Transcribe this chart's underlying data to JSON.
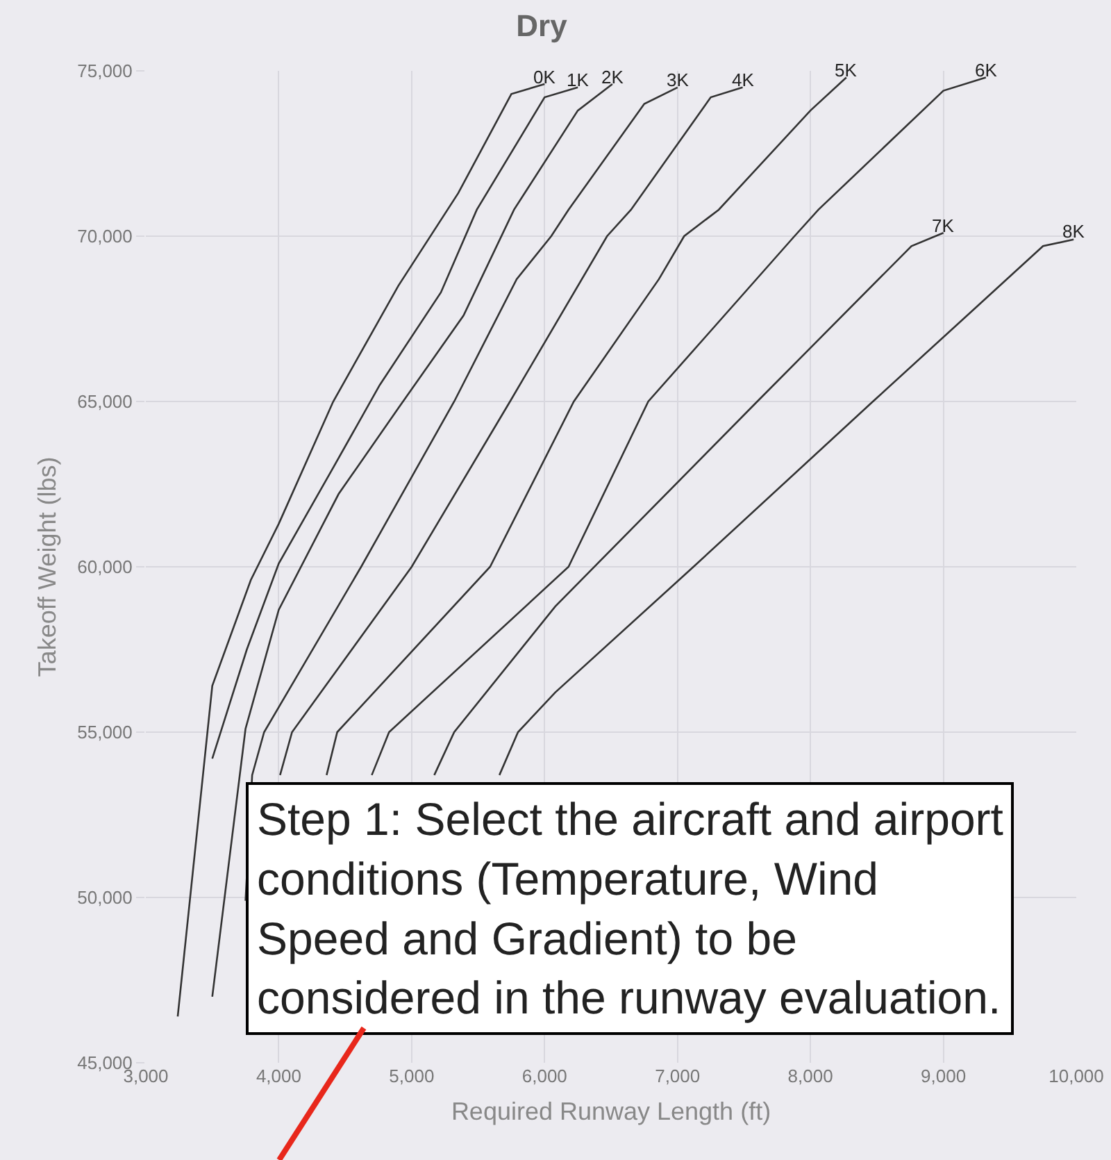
{
  "chart_data": {
    "type": "line",
    "title": "Dry",
    "xlabel": "Required Runway Length (ft)",
    "ylabel": "Takeoff Weight (lbs)",
    "xlim": [
      3000,
      10000
    ],
    "ylim": [
      45000,
      75000
    ],
    "xticks": [
      {
        "value": 3000,
        "label": "3,000"
      },
      {
        "value": 4000,
        "label": "4,000"
      },
      {
        "value": 5000,
        "label": "5,000"
      },
      {
        "value": 6000,
        "label": "6,000"
      },
      {
        "value": 7000,
        "label": "7,000"
      },
      {
        "value": 8000,
        "label": "8,000"
      },
      {
        "value": 9000,
        "label": "9,000"
      },
      {
        "value": 10000,
        "label": "10,000"
      }
    ],
    "yticks": [
      {
        "value": 45000,
        "label": "45,000"
      },
      {
        "value": 50000,
        "label": "50,000"
      },
      {
        "value": 55000,
        "label": "55,000"
      },
      {
        "value": 60000,
        "label": "60,000"
      },
      {
        "value": 65000,
        "label": "65,000"
      },
      {
        "value": 70000,
        "label": "70,000"
      },
      {
        "value": 75000,
        "label": "75,000"
      }
    ],
    "grid": true,
    "legend": false,
    "marker": "none",
    "line_style": "solid",
    "series": [
      {
        "name": "0K",
        "color": "#333333",
        "x": [
          3240,
          3500,
          3790,
          4000,
          4410,
          4900,
          5350,
          5750,
          6000
        ],
        "values": [
          46400,
          56400,
          59600,
          61300,
          65000,
          68500,
          71300,
          74300,
          74600
        ]
      },
      {
        "name": "1K",
        "color": "#333333",
        "x": [
          3500,
          3760,
          4000,
          4410,
          4760,
          5220,
          5490,
          6000,
          6250
        ],
        "values": [
          54200,
          57500,
          60100,
          63000,
          65500,
          68300,
          70800,
          74200,
          74500
        ]
      },
      {
        "name": "2K",
        "color": "#333333",
        "x": [
          3500,
          3750,
          4000,
          4450,
          4900,
          5390,
          5770,
          6250,
          6510
        ],
        "values": [
          47000,
          55100,
          58700,
          62200,
          64800,
          67600,
          70800,
          73800,
          74600
        ]
      },
      {
        "name": "3K",
        "color": "#333333",
        "x": [
          3750,
          3800,
          3890,
          4620,
          5320,
          5790,
          6050,
          6180,
          6750,
          7000
        ],
        "values": [
          49900,
          53700,
          55000,
          60000,
          65000,
          68700,
          70000,
          70800,
          74000,
          74500
        ]
      },
      {
        "name": "4K",
        "color": "#333333",
        "x": [
          4010,
          4100,
          5000,
          5740,
          6470,
          6650,
          7250,
          7490
        ],
        "values": [
          53700,
          55000,
          60000,
          65000,
          70000,
          70800,
          74200,
          74500
        ]
      },
      {
        "name": "5K",
        "color": "#333333",
        "x": [
          4360,
          4440,
          5590,
          6220,
          6860,
          7050,
          7310,
          8000,
          8270
        ],
        "values": [
          53700,
          55000,
          60000,
          65000,
          68700,
          70000,
          70800,
          73800,
          74800
        ]
      },
      {
        "name": "6K",
        "color": "#333333",
        "x": [
          4700,
          4830,
          6180,
          6780,
          7880,
          8060,
          9000,
          9320
        ],
        "values": [
          53700,
          55000,
          60000,
          65000,
          70000,
          70800,
          74400,
          74800
        ]
      },
      {
        "name": "7K",
        "color": "#333333",
        "x": [
          5170,
          5320,
          6080,
          7600,
          8760,
          9000
        ],
        "values": [
          53700,
          55000,
          58800,
          65000,
          69700,
          70100
        ]
      },
      {
        "name": "8K",
        "color": "#333333",
        "x": [
          5660,
          5800,
          6080,
          7120,
          8470,
          9260,
          9750,
          9980
        ],
        "values": [
          53700,
          55000,
          56200,
          60000,
          65000,
          67900,
          69700,
          69900
        ]
      }
    ],
    "annotations": [
      "Step 1: Select the aircraft and airport\nconditions (Temperature, Wind\nSpeed and Gradient) to be\nconsidered in the runway evaluation."
    ]
  }
}
